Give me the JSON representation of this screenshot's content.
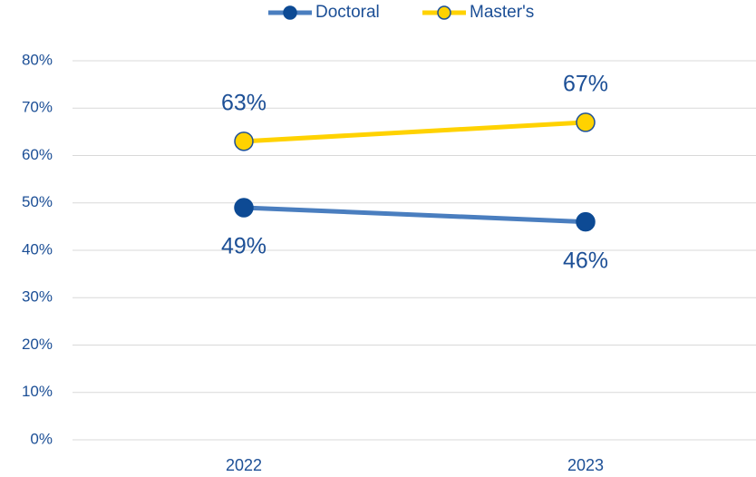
{
  "chart_data": {
    "type": "line",
    "categories": [
      "2022",
      "2023"
    ],
    "series": [
      {
        "name": "Doctoral",
        "color": "#4a7ebf",
        "marker_fill": "#0d4a94",
        "marker_edge": "#0d4a94",
        "label_position": "below",
        "values": [
          49,
          46
        ],
        "value_labels": [
          "49%",
          "46%"
        ]
      },
      {
        "name": "Master's",
        "color": "#ffd200",
        "marker_fill": "#ffd200",
        "marker_edge": "#1c4f96",
        "label_position": "above",
        "values": [
          63,
          67
        ],
        "value_labels": [
          "63%",
          "67%"
        ]
      }
    ],
    "ylim": [
      0,
      80
    ],
    "yticks": [
      {
        "value": 0,
        "label": "0%"
      },
      {
        "value": 10,
        "label": "10%"
      },
      {
        "value": 20,
        "label": "20%"
      },
      {
        "value": 30,
        "label": "30%"
      },
      {
        "value": 40,
        "label": "40%"
      },
      {
        "value": 50,
        "label": "50%"
      },
      {
        "value": 60,
        "label": "60%"
      },
      {
        "value": 70,
        "label": "70%"
      },
      {
        "value": 80,
        "label": "80%"
      }
    ],
    "grid": true,
    "legend": "top"
  }
}
